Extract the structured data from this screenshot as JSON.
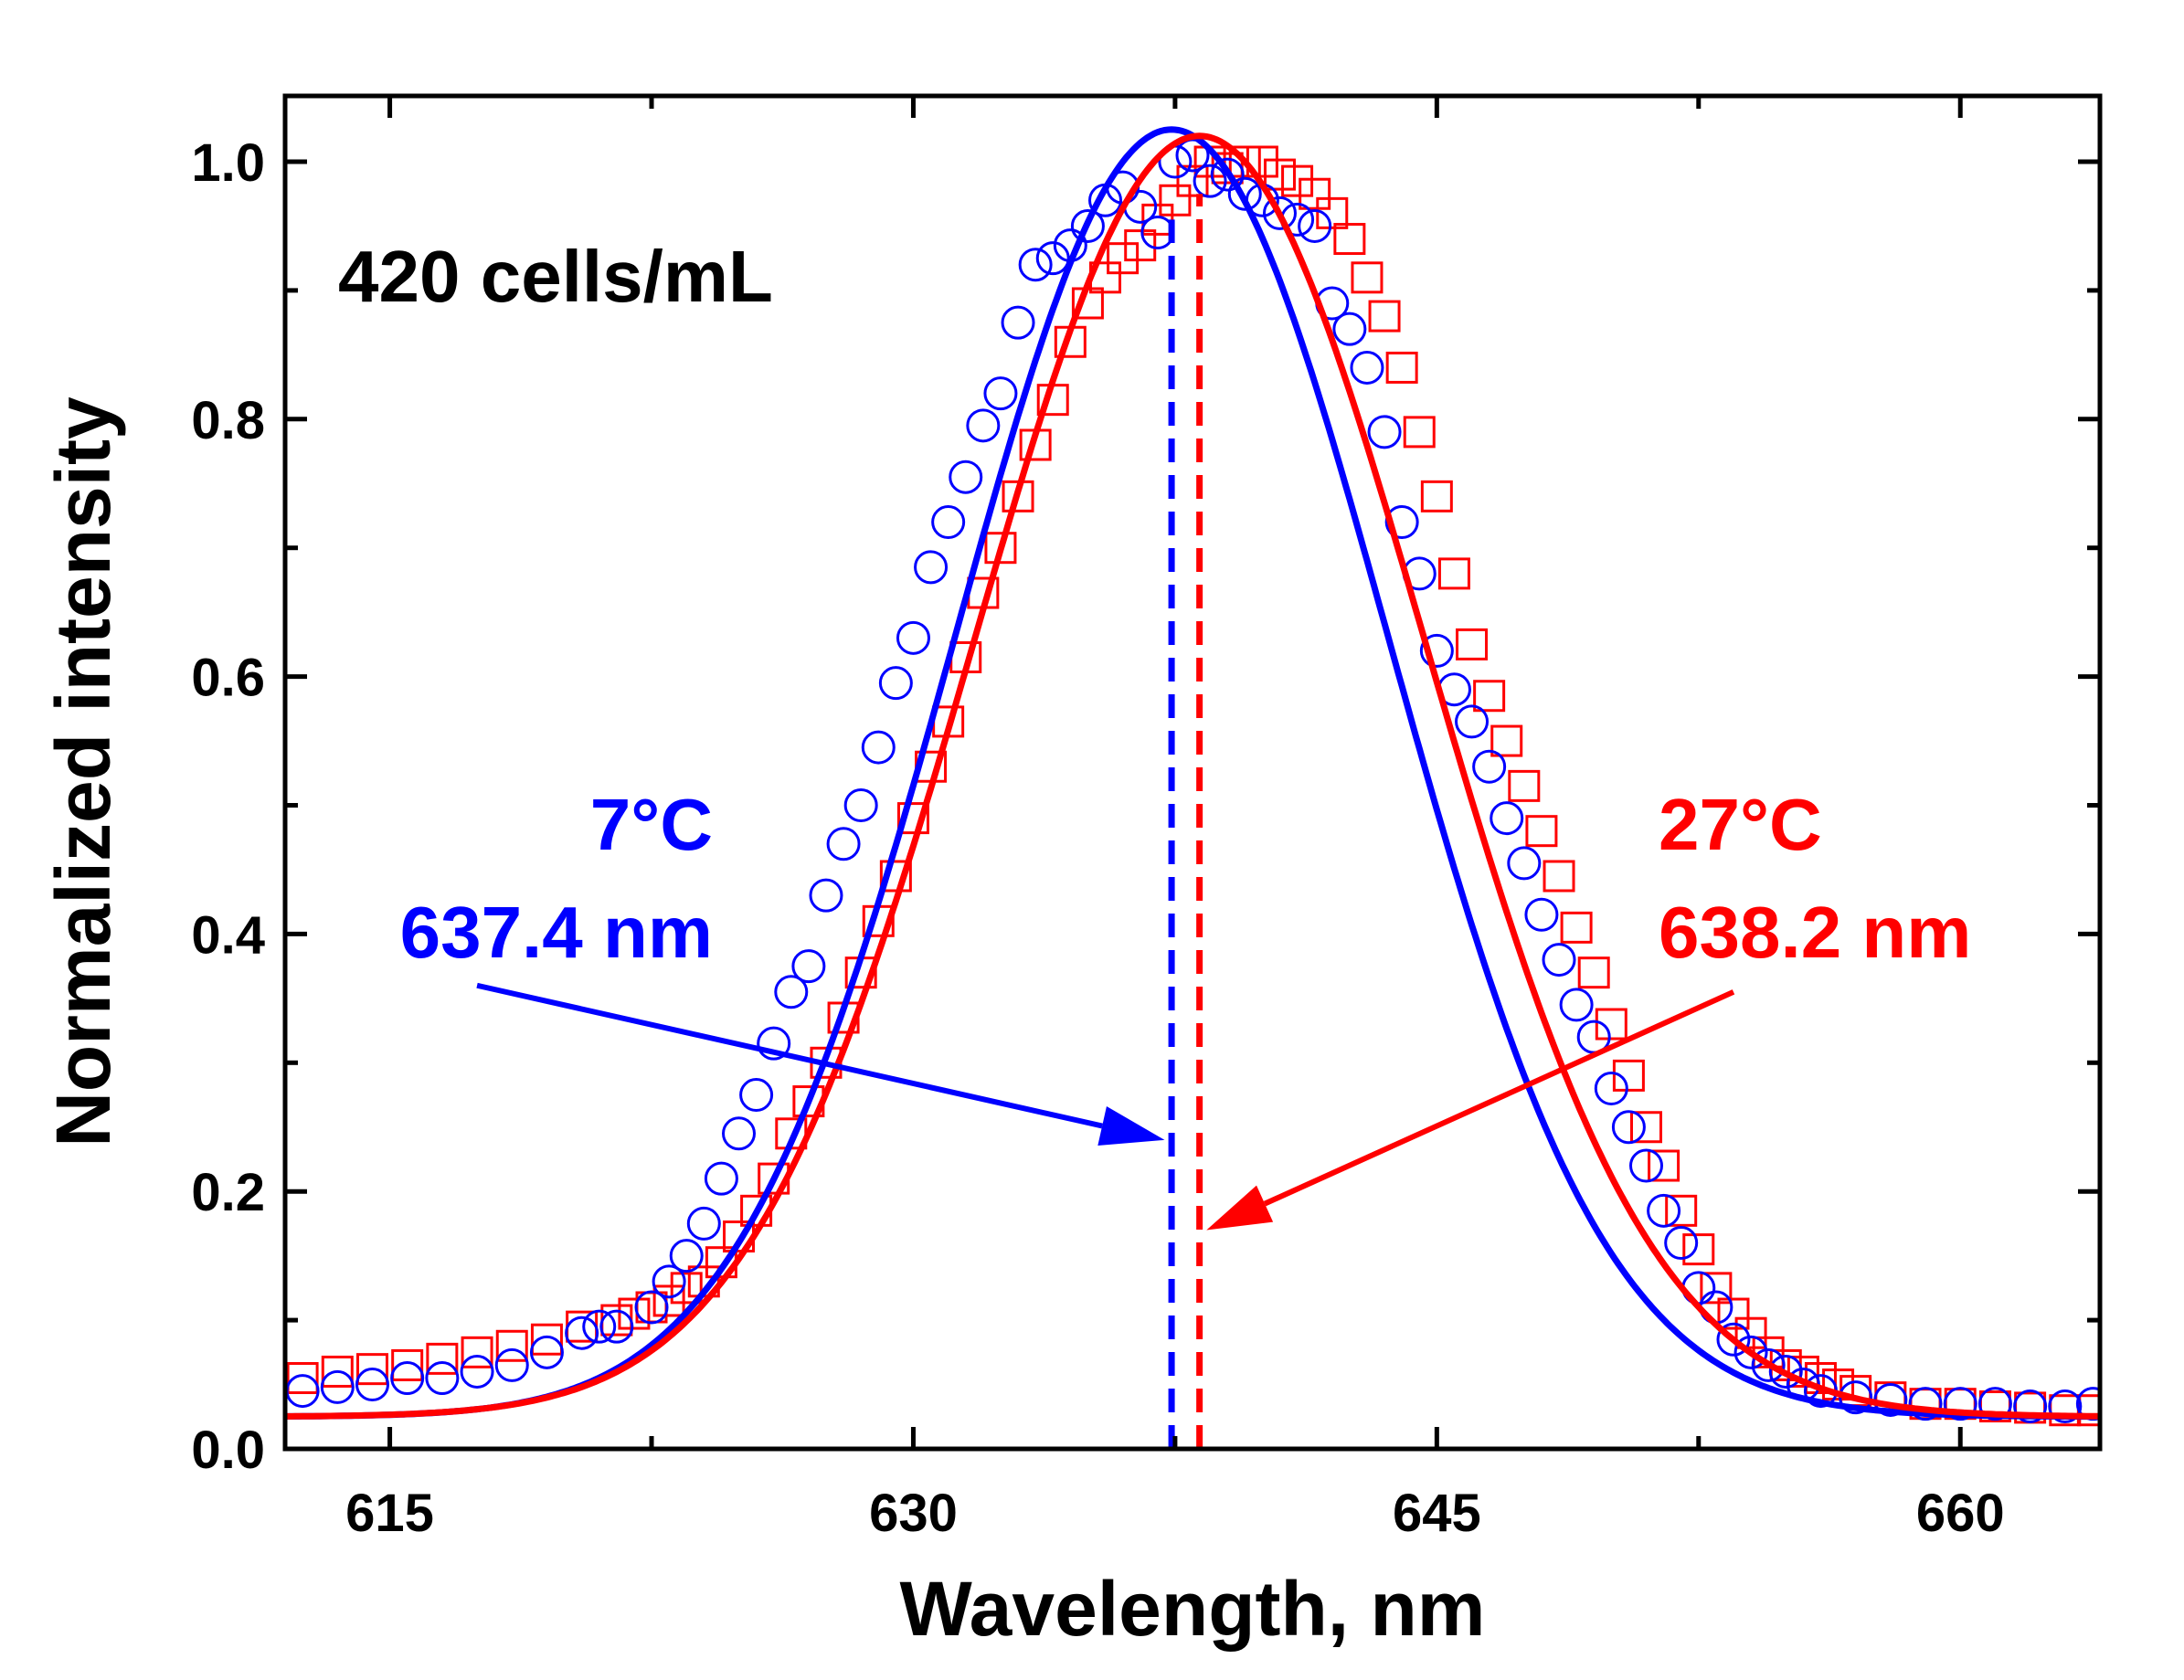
{
  "chart_data": {
    "type": "line",
    "title": "",
    "xlabel": "Wavelength, nm",
    "ylabel": "Normalized intensity",
    "xlim": [
      612,
      664
    ],
    "ylim": [
      0.0,
      1.05
    ],
    "x_ticks": [
      615,
      630,
      645,
      660
    ],
    "x_tick_labels": [
      "615",
      "630",
      "645",
      "660"
    ],
    "y_ticks": [
      0.0,
      0.2,
      0.4,
      0.6,
      0.8,
      1.0
    ],
    "y_tick_labels": [
      "0.0",
      "0.2",
      "0.4",
      "0.6",
      "0.8",
      "1.0"
    ],
    "series": [
      {
        "name": "7°C",
        "color": "#0000ff",
        "marker": "circle",
        "peak_nm": 637.4,
        "peak_label": "637.4 nm",
        "fit": {
          "center": 637.4,
          "amplitude": 1.0,
          "sigma": 6.2,
          "baseline": 0.025
        },
        "points": [
          [
            612.5,
            0.045
          ],
          [
            613.5,
            0.048
          ],
          [
            614.5,
            0.05
          ],
          [
            615.5,
            0.055
          ],
          [
            616.5,
            0.055
          ],
          [
            617.5,
            0.06
          ],
          [
            618.5,
            0.065
          ],
          [
            619.5,
            0.075
          ],
          [
            620.5,
            0.09
          ],
          [
            621.0,
            0.095
          ],
          [
            621.5,
            0.095
          ],
          [
            622.5,
            0.11
          ],
          [
            623.0,
            0.13
          ],
          [
            623.5,
            0.15
          ],
          [
            624.0,
            0.175
          ],
          [
            624.5,
            0.21
          ],
          [
            625.0,
            0.245
          ],
          [
            625.5,
            0.275
          ],
          [
            626.0,
            0.315
          ],
          [
            626.5,
            0.355
          ],
          [
            627.0,
            0.375
          ],
          [
            627.5,
            0.43
          ],
          [
            628.0,
            0.47
          ],
          [
            628.5,
            0.5
          ],
          [
            629.0,
            0.545
          ],
          [
            629.5,
            0.595
          ],
          [
            630.0,
            0.63
          ],
          [
            630.5,
            0.685
          ],
          [
            631.0,
            0.72
          ],
          [
            631.5,
            0.755
          ],
          [
            632.0,
            0.795
          ],
          [
            632.5,
            0.82
          ],
          [
            633.0,
            0.875
          ],
          [
            633.5,
            0.92
          ],
          [
            634.0,
            0.925
          ],
          [
            634.5,
            0.935
          ],
          [
            635.0,
            0.95
          ],
          [
            635.5,
            0.97
          ],
          [
            636.0,
            0.98
          ],
          [
            636.5,
            0.965
          ],
          [
            637.0,
            0.945
          ],
          [
            637.5,
            1.0
          ],
          [
            638.0,
            1.005
          ],
          [
            638.5,
            0.985
          ],
          [
            639.0,
            0.99
          ],
          [
            639.5,
            0.975
          ],
          [
            640.0,
            0.97
          ],
          [
            640.5,
            0.96
          ],
          [
            641.0,
            0.955
          ],
          [
            641.5,
            0.95
          ],
          [
            642.0,
            0.89
          ],
          [
            642.5,
            0.87
          ],
          [
            643.0,
            0.84
          ],
          [
            643.5,
            0.79
          ],
          [
            644.0,
            0.72
          ],
          [
            644.5,
            0.68
          ],
          [
            645.0,
            0.62
          ],
          [
            645.5,
            0.59
          ],
          [
            646.0,
            0.565
          ],
          [
            646.5,
            0.53
          ],
          [
            647.0,
            0.49
          ],
          [
            647.5,
            0.455
          ],
          [
            648.0,
            0.415
          ],
          [
            648.5,
            0.38
          ],
          [
            649.0,
            0.345
          ],
          [
            649.5,
            0.32
          ],
          [
            650.0,
            0.28
          ],
          [
            650.5,
            0.25
          ],
          [
            651.0,
            0.22
          ],
          [
            651.5,
            0.185
          ],
          [
            652.0,
            0.16
          ],
          [
            652.5,
            0.125
          ],
          [
            653.0,
            0.11
          ],
          [
            653.5,
            0.085
          ],
          [
            654.0,
            0.075
          ],
          [
            654.5,
            0.065
          ],
          [
            655.0,
            0.06
          ],
          [
            655.5,
            0.05
          ],
          [
            656.0,
            0.045
          ],
          [
            657.0,
            0.04
          ],
          [
            658.0,
            0.038
          ],
          [
            659.0,
            0.035
          ],
          [
            660.0,
            0.035
          ],
          [
            661.0,
            0.035
          ],
          [
            662.0,
            0.033
          ],
          [
            663.0,
            0.033
          ],
          [
            663.8,
            0.035
          ]
        ]
      },
      {
        "name": "27°C",
        "color": "#ff0000",
        "marker": "square",
        "peak_nm": 638.2,
        "peak_label": "638.2 nm",
        "fit": {
          "center": 638.2,
          "amplitude": 0.995,
          "sigma": 6.45,
          "baseline": 0.025
        },
        "points": [
          [
            612.5,
            0.055
          ],
          [
            613.5,
            0.06
          ],
          [
            614.5,
            0.062
          ],
          [
            615.5,
            0.065
          ],
          [
            616.5,
            0.07
          ],
          [
            617.5,
            0.075
          ],
          [
            618.5,
            0.08
          ],
          [
            619.5,
            0.085
          ],
          [
            620.5,
            0.095
          ],
          [
            621.5,
            0.1
          ],
          [
            622.0,
            0.105
          ],
          [
            622.5,
            0.11
          ],
          [
            623.0,
            0.115
          ],
          [
            623.5,
            0.125
          ],
          [
            624.0,
            0.13
          ],
          [
            624.5,
            0.145
          ],
          [
            625.0,
            0.165
          ],
          [
            625.5,
            0.185
          ],
          [
            626.0,
            0.21
          ],
          [
            626.5,
            0.245
          ],
          [
            627.0,
            0.27
          ],
          [
            627.5,
            0.3
          ],
          [
            628.0,
            0.335
          ],
          [
            628.5,
            0.37
          ],
          [
            629.0,
            0.41
          ],
          [
            629.5,
            0.445
          ],
          [
            630.0,
            0.49
          ],
          [
            630.5,
            0.53
          ],
          [
            631.0,
            0.565
          ],
          [
            631.5,
            0.615
          ],
          [
            632.0,
            0.665
          ],
          [
            632.5,
            0.7
          ],
          [
            633.0,
            0.74
          ],
          [
            633.5,
            0.78
          ],
          [
            634.0,
            0.815
          ],
          [
            634.5,
            0.86
          ],
          [
            635.0,
            0.89
          ],
          [
            635.5,
            0.91
          ],
          [
            636.0,
            0.925
          ],
          [
            636.5,
            0.935
          ],
          [
            637.0,
            0.955
          ],
          [
            637.5,
            0.97
          ],
          [
            638.0,
            0.985
          ],
          [
            638.5,
            1.0
          ],
          [
            639.0,
            0.995
          ],
          [
            639.5,
            1.0
          ],
          [
            640.0,
            1.0
          ],
          [
            640.5,
            0.99
          ],
          [
            641.0,
            0.985
          ],
          [
            641.5,
            0.975
          ],
          [
            642.0,
            0.96
          ],
          [
            642.5,
            0.94
          ],
          [
            643.0,
            0.91
          ],
          [
            643.5,
            0.88
          ],
          [
            644.0,
            0.84
          ],
          [
            644.5,
            0.79
          ],
          [
            645.0,
            0.74
          ],
          [
            645.5,
            0.68
          ],
          [
            646.0,
            0.625
          ],
          [
            646.5,
            0.585
          ],
          [
            647.0,
            0.55
          ],
          [
            647.5,
            0.515
          ],
          [
            648.0,
            0.48
          ],
          [
            648.5,
            0.445
          ],
          [
            649.0,
            0.405
          ],
          [
            649.5,
            0.37
          ],
          [
            650.0,
            0.33
          ],
          [
            650.5,
            0.29
          ],
          [
            651.0,
            0.25
          ],
          [
            651.5,
            0.22
          ],
          [
            652.0,
            0.185
          ],
          [
            652.5,
            0.155
          ],
          [
            653.0,
            0.125
          ],
          [
            653.5,
            0.105
          ],
          [
            654.0,
            0.09
          ],
          [
            654.5,
            0.075
          ],
          [
            655.0,
            0.065
          ],
          [
            655.5,
            0.06
          ],
          [
            656.0,
            0.055
          ],
          [
            656.5,
            0.05
          ],
          [
            657.0,
            0.045
          ],
          [
            658.0,
            0.04
          ],
          [
            659.0,
            0.035
          ],
          [
            660.0,
            0.035
          ],
          [
            661.0,
            0.033
          ],
          [
            662.0,
            0.032
          ],
          [
            663.0,
            0.03
          ],
          [
            663.8,
            0.03
          ]
        ]
      }
    ],
    "annotations": [
      {
        "text": "420 cells/mL",
        "color": "#000000"
      },
      {
        "text": "7°C",
        "color": "#0000ff"
      },
      {
        "text": "637.4 nm",
        "color": "#0000ff"
      },
      {
        "text": "27°C",
        "color": "#ff0000"
      },
      {
        "text": "638.2 nm",
        "color": "#ff0000"
      }
    ],
    "arrows": [
      {
        "series": "7°C",
        "from": [
          617.5,
          0.36
        ],
        "to": [
          637.2,
          0.24
        ]
      },
      {
        "series": "27°C",
        "from": [
          653.5,
          0.355
        ],
        "to": [
          638.4,
          0.17
        ]
      }
    ],
    "dashed_lines": [
      {
        "series": "7°C",
        "x": 637.4,
        "y_from": 0.0,
        "y_to": 0.955
      },
      {
        "series": "27°C",
        "x": 638.2,
        "y_from": 0.0,
        "y_to": 0.975
      }
    ],
    "grid": false,
    "legend": "none"
  }
}
